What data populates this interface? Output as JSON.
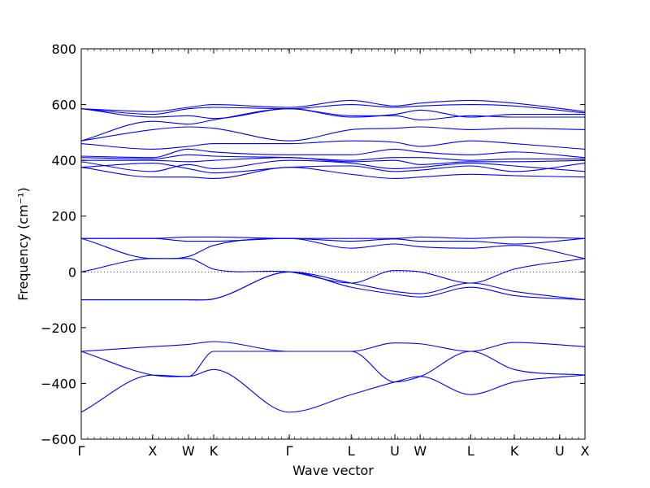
{
  "chart_data": {
    "type": "line",
    "title": "",
    "xlabel": "Wave vector",
    "ylabel": "Frequency (cm⁻¹)",
    "ylim": [
      -600,
      800
    ],
    "yticks": [
      -600,
      -400,
      -200,
      0,
      200,
      400,
      600,
      800
    ],
    "grid": false,
    "line_color": "#0000ff",
    "k_points": [
      {
        "label": "Γ",
        "x": 0.0
      },
      {
        "label": "X",
        "x": 1.0
      },
      {
        "label": "W",
        "x": 1.5
      },
      {
        "label": "K",
        "x": 1.854
      },
      {
        "label": "Γ",
        "x": 2.914
      },
      {
        "label": "L",
        "x": 3.78
      },
      {
        "label": "U",
        "x": 4.392
      },
      {
        "label": "W",
        "x": 4.746
      },
      {
        "label": "L",
        "x": 5.453
      },
      {
        "label": "K",
        "x": 6.065
      },
      {
        "label": "U",
        "x": 6.7
      },
      {
        "label": "X",
        "x": 7.054
      }
    ],
    "x_grid": [
      0,
      1.0,
      1.5,
      1.854,
      2.914,
      3.78,
      4.392,
      4.746,
      5.453,
      6.065,
      7.054
    ],
    "series": [
      {
        "values": [
          -503,
          -370,
          -375,
          -350,
          -503,
          -440,
          -395,
          -375,
          -440,
          -395,
          -370
        ]
      },
      {
        "values": [
          -285,
          -370,
          -375,
          -285,
          -285,
          -285,
          -395,
          -375,
          -285,
          -350,
          -370
        ]
      },
      {
        "values": [
          -285,
          -268,
          -260,
          -250,
          -285,
          -285,
          -255,
          -258,
          -285,
          -253,
          -268
        ]
      },
      {
        "values": [
          -100,
          -100,
          -100,
          -97,
          0,
          -40,
          -70,
          -78,
          -40,
          -70,
          -100
        ]
      },
      {
        "values": [
          -100,
          -100,
          -100,
          -97,
          0,
          -55,
          -80,
          -90,
          -55,
          -85,
          -100
        ]
      },
      {
        "values": [
          0,
          48,
          48,
          10,
          0,
          -40,
          5,
          0,
          -40,
          10,
          48
        ]
      },
      {
        "values": [
          120,
          48,
          55,
          95,
          120,
          85,
          100,
          90,
          85,
          95,
          48
        ]
      },
      {
        "values": [
          120,
          120,
          110,
          110,
          120,
          110,
          118,
          110,
          110,
          100,
          120
        ]
      },
      {
        "values": [
          120,
          120,
          125,
          125,
          120,
          120,
          120,
          125,
          120,
          125,
          120
        ]
      },
      {
        "values": [
          375,
          340,
          340,
          335,
          375,
          350,
          335,
          340,
          350,
          345,
          340
        ]
      },
      {
        "values": [
          375,
          390,
          370,
          355,
          375,
          380,
          360,
          365,
          380,
          360,
          390
        ]
      },
      {
        "values": [
          395,
          360,
          385,
          370,
          400,
          390,
          370,
          375,
          390,
          380,
          360
        ]
      },
      {
        "values": [
          400,
          400,
          395,
          400,
          410,
          395,
          400,
          385,
          395,
          395,
          400
        ]
      },
      {
        "values": [
          410,
          405,
          420,
          415,
          410,
          400,
          410,
          410,
          400,
          405,
          405
        ]
      },
      {
        "values": [
          415,
          410,
          440,
          430,
          420,
          420,
          440,
          430,
          420,
          430,
          410
        ]
      },
      {
        "values": [
          460,
          440,
          450,
          460,
          460,
          470,
          465,
          450,
          470,
          460,
          440
        ]
      },
      {
        "values": [
          470,
          510,
          520,
          515,
          470,
          510,
          515,
          520,
          510,
          515,
          510
        ]
      },
      {
        "values": [
          470,
          540,
          530,
          545,
          585,
          560,
          560,
          545,
          560,
          555,
          555
        ]
      },
      {
        "values": [
          585,
          555,
          560,
          550,
          585,
          555,
          565,
          580,
          555,
          565,
          565
        ]
      },
      {
        "values": [
          585,
          565,
          585,
          590,
          585,
          600,
          590,
          595,
          600,
          595,
          570
        ]
      },
      {
        "values": [
          585,
          575,
          590,
          600,
          590,
          615,
          595,
          605,
          615,
          605,
          575
        ]
      }
    ]
  }
}
